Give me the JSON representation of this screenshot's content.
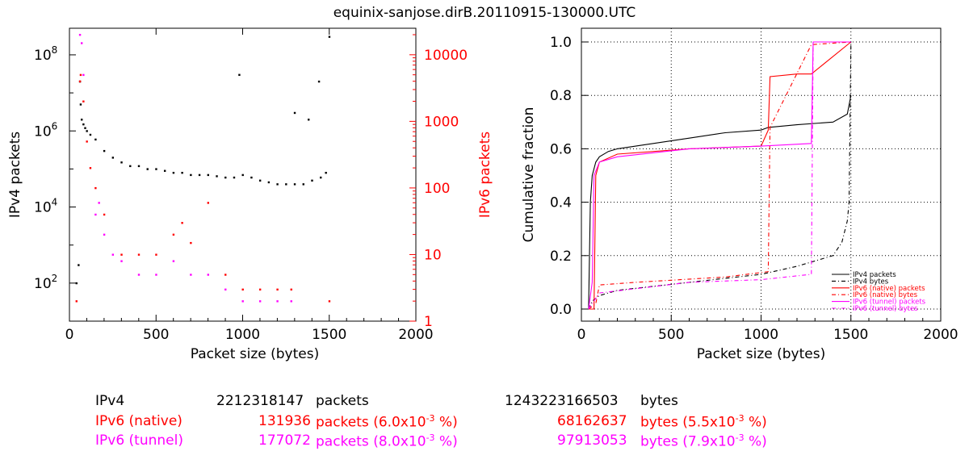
{
  "title": "equinix-sanjose.dirB.20110915-130000.UTC",
  "colors": {
    "ipv4": "#000000",
    "native": "#ff0000",
    "tunnel": "#ff00ff",
    "grid": "#000000"
  },
  "chart_data": [
    {
      "type": "scatter",
      "xlabel": "Packet size (bytes)",
      "ylabel": "IPv4 packets",
      "ylabel_right": "IPv6 packets",
      "xlim": [
        0,
        2000
      ],
      "xticks": [
        0,
        500,
        1000,
        1500,
        2000
      ],
      "ylim_left": [
        10,
        500000000
      ],
      "yscale_left": "log",
      "yticks_left": [
        {
          "v": 100,
          "base": "10",
          "exp": "2"
        },
        {
          "v": 10000,
          "base": "10",
          "exp": "4"
        },
        {
          "v": 1000000,
          "base": "10",
          "exp": "6"
        },
        {
          "v": 100000000,
          "base": "10",
          "exp": "8"
        }
      ],
      "ylim_right": [
        1,
        25000
      ],
      "yscale_right": "log",
      "yticks_right": [
        "1",
        "10",
        "100",
        "1000",
        "10000"
      ],
      "series": [
        {
          "name": "IPv4",
          "points": [
            [
              40,
              100
            ],
            [
              52,
              300
            ],
            [
              60,
              20000000
            ],
            [
              64,
              5000000
            ],
            [
              70,
              2000000
            ],
            [
              80,
              1500000
            ],
            [
              90,
              1200000
            ],
            [
              100,
              1000000
            ],
            [
              120,
              800000
            ],
            [
              150,
              600000
            ],
            [
              200,
              300000
            ],
            [
              250,
              200000
            ],
            [
              300,
              150000
            ],
            [
              350,
              120000
            ],
            [
              400,
              120000
            ],
            [
              450,
              100000
            ],
            [
              500,
              100000
            ],
            [
              550,
              90000
            ],
            [
              600,
              80000
            ],
            [
              650,
              80000
            ],
            [
              700,
              70000
            ],
            [
              750,
              70000
            ],
            [
              800,
              70000
            ],
            [
              850,
              65000
            ],
            [
              900,
              60000
            ],
            [
              950,
              60000
            ],
            [
              1000,
              70000
            ],
            [
              1050,
              60000
            ],
            [
              1100,
              50000
            ],
            [
              1150,
              45000
            ],
            [
              1200,
              40000
            ],
            [
              1250,
              40000
            ],
            [
              1300,
              40000
            ],
            [
              1350,
              40000
            ],
            [
              1400,
              50000
            ],
            [
              1450,
              60000
            ],
            [
              1480,
              80000
            ],
            [
              1500,
              300000000
            ],
            [
              980,
              30000000
            ],
            [
              1440,
              20000000
            ],
            [
              1300,
              3000000
            ],
            [
              1380,
              2000000
            ]
          ]
        },
        {
          "name": "IPv6 (native)",
          "points": [
            [
              40,
              2
            ],
            [
              60,
              4000
            ],
            [
              64,
              5000
            ],
            [
              80,
              2000
            ],
            [
              100,
              500
            ],
            [
              120,
              200
            ],
            [
              150,
              100
            ],
            [
              200,
              40
            ],
            [
              300,
              10
            ],
            [
              400,
              10
            ],
            [
              500,
              10
            ],
            [
              600,
              20
            ],
            [
              650,
              30
            ],
            [
              700,
              15
            ],
            [
              800,
              60
            ],
            [
              900,
              5
            ],
            [
              1000,
              3
            ],
            [
              1100,
              3
            ],
            [
              1200,
              3
            ],
            [
              1280,
              3
            ],
            [
              1500,
              2
            ]
          ]
        },
        {
          "name": "IPv6 (tunnel)",
          "points": [
            [
              60,
              20000
            ],
            [
              70,
              15000
            ],
            [
              80,
              5000
            ],
            [
              150,
              40
            ],
            [
              170,
              60
            ],
            [
              200,
              20
            ],
            [
              250,
              10
            ],
            [
              300,
              8
            ],
            [
              400,
              5
            ],
            [
              500,
              5
            ],
            [
              600,
              8
            ],
            [
              700,
              5
            ],
            [
              800,
              5
            ],
            [
              900,
              3
            ],
            [
              1000,
              2
            ],
            [
              1100,
              2
            ],
            [
              1200,
              2
            ],
            [
              1280,
              2
            ]
          ]
        }
      ]
    },
    {
      "type": "line",
      "xlabel": "Packet size (bytes)",
      "ylabel": "Cumulative fraction",
      "xlim": [
        0,
        2000
      ],
      "xticks": [
        "0",
        "500",
        "1000",
        "1500",
        "2000"
      ],
      "ylim": [
        0,
        1.05
      ],
      "yticks": [
        "0.0",
        "0.2",
        "0.4",
        "0.6",
        "0.8",
        "1.0"
      ],
      "grid": true,
      "legend_position": "bottom-right",
      "series": [
        {
          "name": "IPv4 packets",
          "x": [
            40,
            50,
            60,
            80,
            100,
            150,
            200,
            400,
            600,
            800,
            1000,
            1040,
            1200,
            1400,
            1480,
            1500
          ],
          "y": [
            0,
            0.4,
            0.5,
            0.55,
            0.57,
            0.59,
            0.6,
            0.62,
            0.64,
            0.66,
            0.67,
            0.68,
            0.69,
            0.7,
            0.73,
            0.8
          ]
        },
        {
          "name": "IPv4 bytes",
          "x": [
            40,
            60,
            100,
            200,
            600,
            1000,
            1200,
            1400,
            1450,
            1480,
            1490,
            1500
          ],
          "y": [
            0,
            0.03,
            0.05,
            0.07,
            0.1,
            0.13,
            0.16,
            0.2,
            0.25,
            0.33,
            0.4,
            1.0
          ]
        },
        {
          "name": "IPv6 (native) packets",
          "x": [
            40,
            70,
            80,
            100,
            200,
            600,
            1000,
            1040,
            1050,
            1200,
            1280,
            1500
          ],
          "y": [
            0,
            0,
            0.5,
            0.55,
            0.58,
            0.6,
            0.61,
            0.67,
            0.87,
            0.88,
            0.88,
            1.0
          ]
        },
        {
          "name": "IPv6 (native) bytes",
          "x": [
            40,
            80,
            100,
            300,
            800,
            1040,
            1050,
            1280,
            1500
          ],
          "y": [
            0,
            0.02,
            0.09,
            0.1,
            0.12,
            0.14,
            0.68,
            0.99,
            1.0
          ]
        },
        {
          "name": "IPv6 (tunnel) packets",
          "x": [
            40,
            60,
            70,
            100,
            200,
            600,
            1000,
            1280,
            1290,
            1500
          ],
          "y": [
            0,
            0.1,
            0.5,
            0.55,
            0.57,
            0.6,
            0.61,
            0.62,
            1.0,
            1.0
          ]
        },
        {
          "name": "IPv6 (tunnel) bytes",
          "x": [
            40,
            100,
            600,
            1000,
            1280,
            1290,
            1500
          ],
          "y": [
            0,
            0.06,
            0.1,
            0.11,
            0.13,
            1.0,
            1.0
          ]
        }
      ]
    }
  ],
  "stats": {
    "rows": [
      {
        "label": "IPv4",
        "packets": "2212318147",
        "packets_unit": "packets",
        "packets_pct": "",
        "bytes": "1243223166503",
        "bytes_unit": "bytes",
        "bytes_pct": ""
      },
      {
        "label": "IPv6 (native)",
        "packets": "131936",
        "packets_unit": "packets",
        "packets_pct": "(6.0x10",
        "packets_exp": "-3",
        "packets_tail": " %)",
        "bytes": "68162637",
        "bytes_unit": "bytes",
        "bytes_pct": "(5.5x10",
        "bytes_exp": "-3",
        "bytes_tail": " %)"
      },
      {
        "label": "IPv6 (tunnel)",
        "packets": "177072",
        "packets_unit": "packets",
        "packets_pct": "(8.0x10",
        "packets_exp": "-3",
        "packets_tail": " %)",
        "bytes": "97913053",
        "bytes_unit": "bytes",
        "bytes_pct": "(7.9x10",
        "bytes_exp": "-3",
        "bytes_tail": " %)"
      }
    ]
  }
}
